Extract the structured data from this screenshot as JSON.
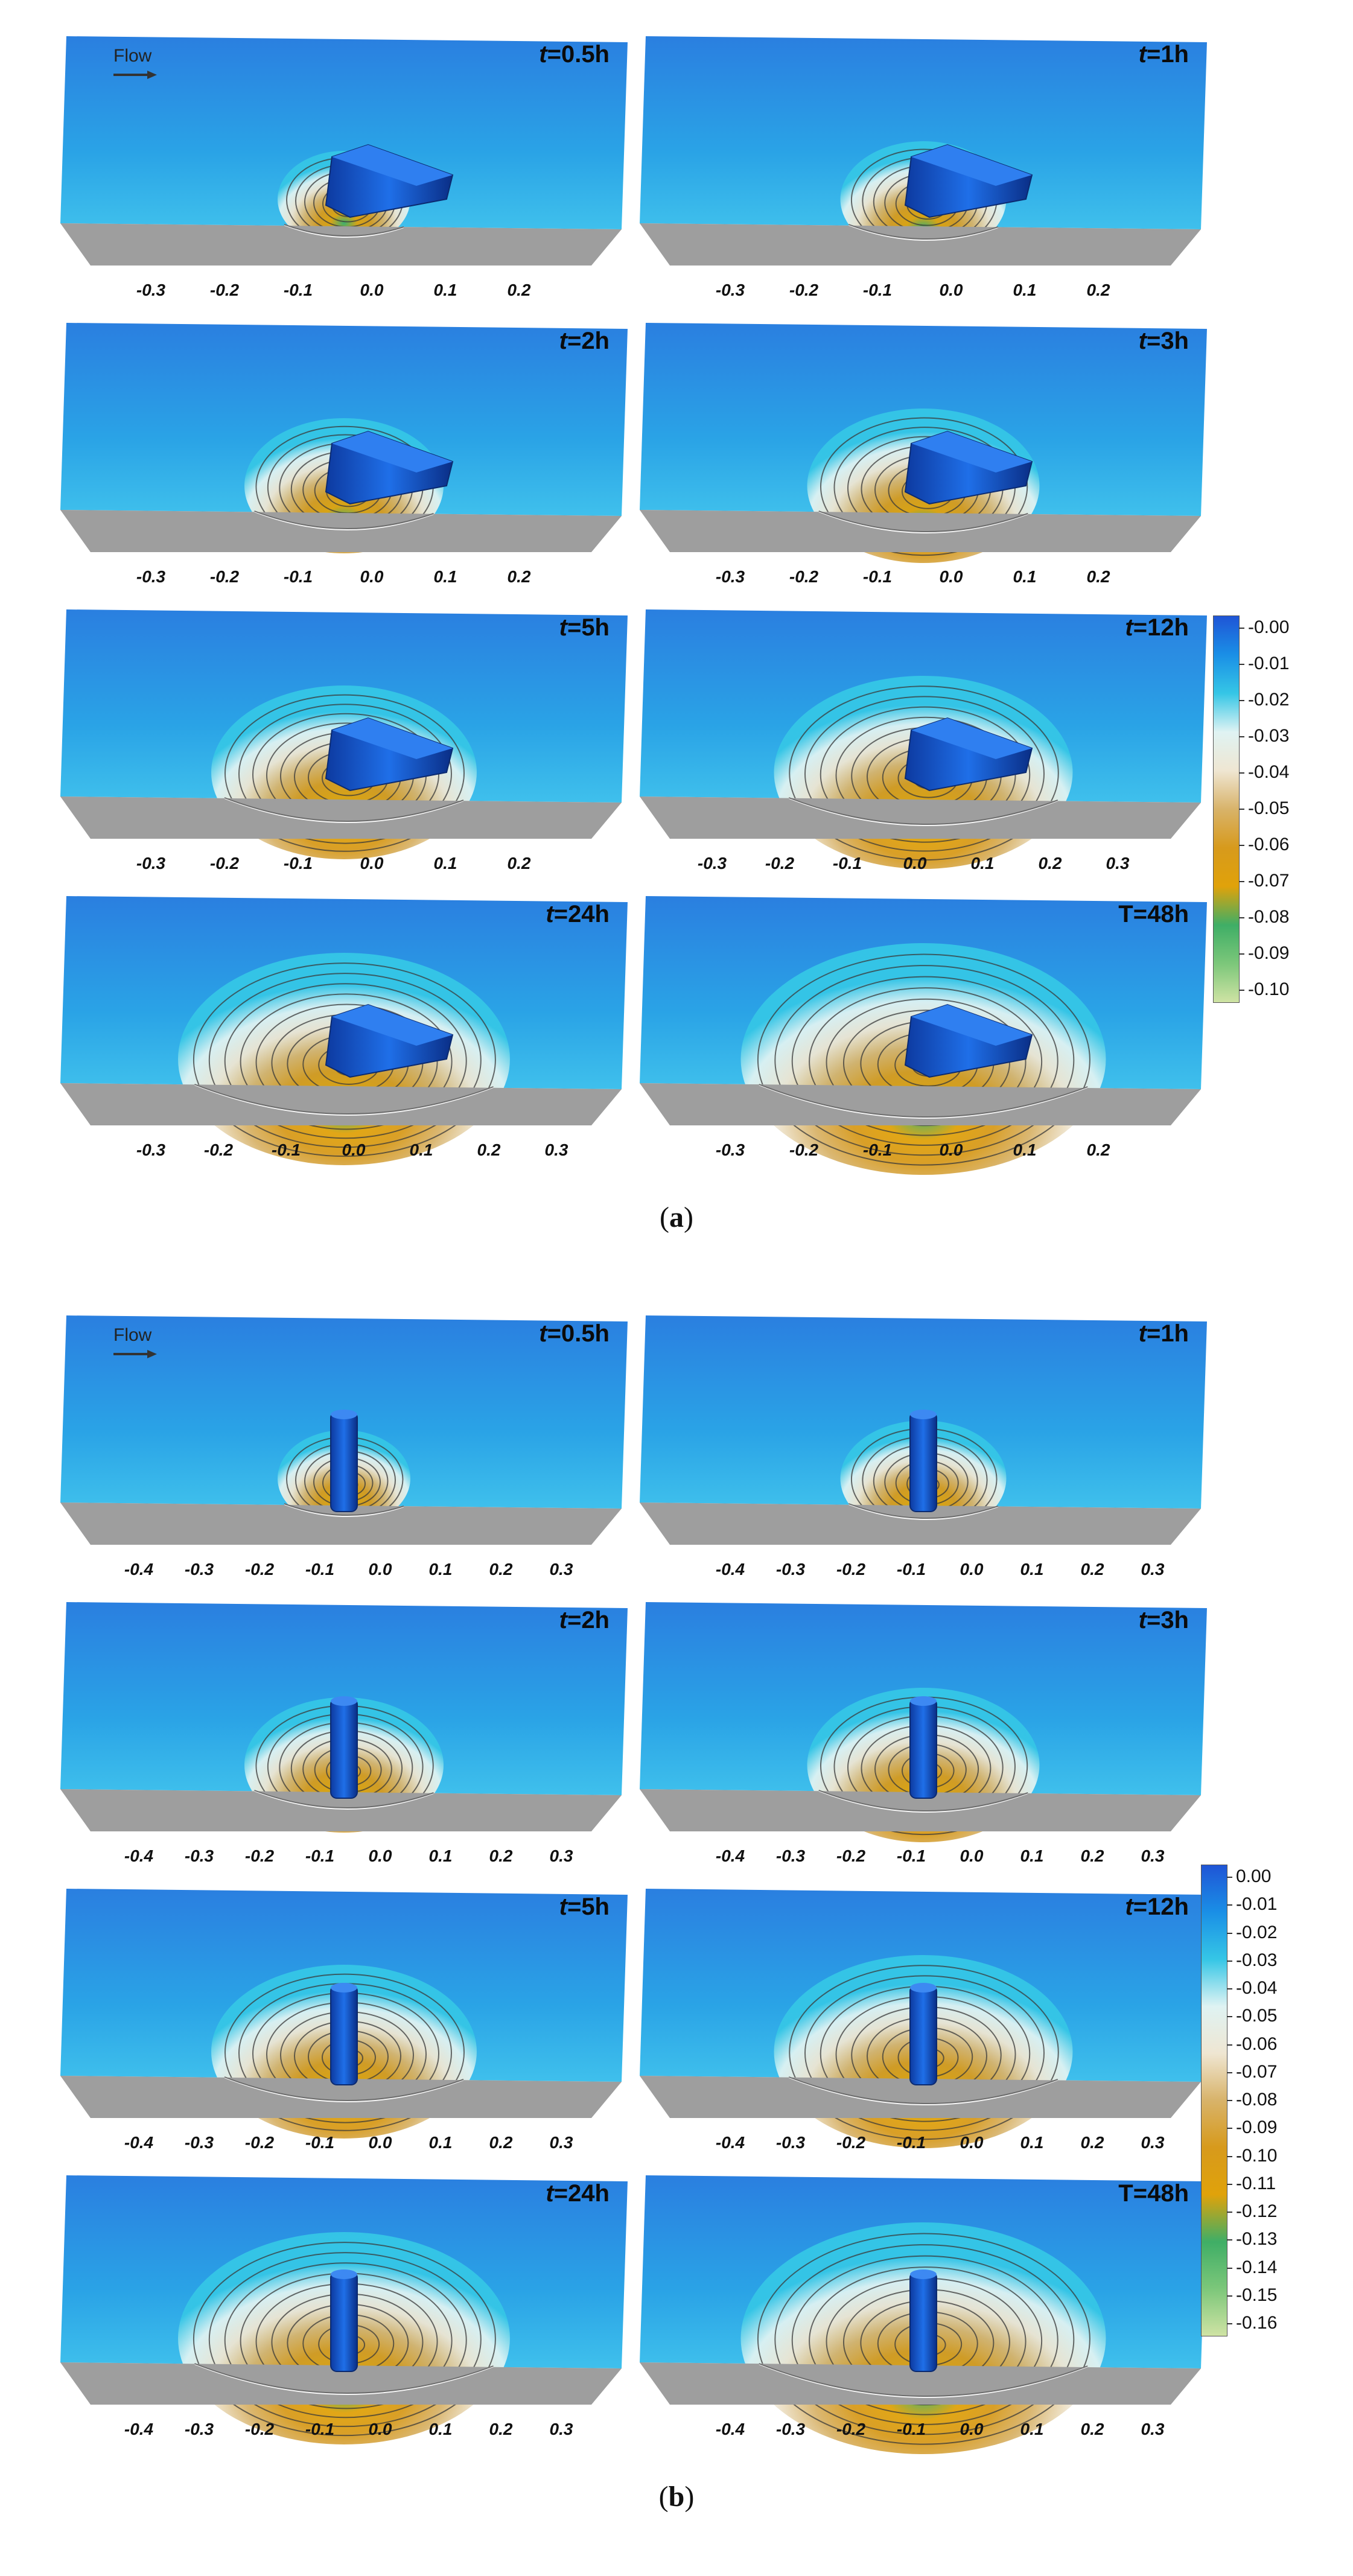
{
  "figure": {
    "flow_label": "Flow",
    "subfigures": [
      {
        "caption_letter": "a",
        "panels": [
          {
            "time_prefix": "t",
            "time_value": "=0.5h",
            "ticks": [
              "-0.3",
              "-0.2",
              "-0.1",
              "0.0",
              "0.1",
              "0.2"
            ],
            "flow": true,
            "pier": "rect"
          },
          {
            "time_prefix": "t",
            "time_value": "=1h",
            "ticks": [
              "-0.3",
              "-0.2",
              "-0.1",
              "0.0",
              "0.1",
              "0.2"
            ],
            "flow": false,
            "pier": "rect"
          },
          {
            "time_prefix": "t",
            "time_value": "=2h",
            "ticks": [
              "-0.3",
              "-0.2",
              "-0.1",
              "0.0",
              "0.1",
              "0.2"
            ],
            "flow": false,
            "pier": "rect"
          },
          {
            "time_prefix": "t",
            "time_value": "=3h",
            "ticks": [
              "-0.3",
              "-0.2",
              "-0.1",
              "0.0",
              "0.1",
              "0.2"
            ],
            "flow": false,
            "pier": "rect"
          },
          {
            "time_prefix": "t",
            "time_value": "=5h",
            "ticks": [
              "-0.3",
              "-0.2",
              "-0.1",
              "0.0",
              "0.1",
              "0.2"
            ],
            "flow": false,
            "pier": "rect"
          },
          {
            "time_prefix": "t",
            "time_value": "=12h",
            "ticks": [
              "-0.3",
              "-0.2",
              "-0.1",
              "0.0",
              "0.1",
              "0.2",
              "0.3"
            ],
            "flow": false,
            "pier": "rect"
          },
          {
            "time_prefix": "t",
            "time_value": "=24h",
            "ticks": [
              "-0.3",
              "-0.2",
              "-0.1",
              "0.0",
              "0.1",
              "0.2",
              "0.3"
            ],
            "flow": false,
            "pier": "rect"
          },
          {
            "time_prefix": "",
            "time_value": "T=48h",
            "ticks": [
              "-0.3",
              "-0.2",
              "-0.1",
              "0.0",
              "0.1",
              "0.2"
            ],
            "flow": false,
            "pier": "rect"
          }
        ],
        "colorbar": {
          "labels": [
            "-0.00",
            "-0.01",
            "-0.02",
            "-0.03",
            "-0.04",
            "-0.05",
            "-0.06",
            "-0.07",
            "-0.08",
            "-0.09",
            "-0.10"
          ],
          "stops": [
            "#1f55d6",
            "#1a8fe6",
            "#35c6e6",
            "#dff3f3",
            "#efe6d2",
            "#d8b36a",
            "#d79a1c",
            "#e0a20a",
            "#3fae66",
            "#7cc77a",
            "#cfe3a4"
          ]
        }
      },
      {
        "caption_letter": "b",
        "panels": [
          {
            "time_prefix": "t",
            "time_value": "=0.5h",
            "ticks": [
              "-0.4",
              "-0.3",
              "-0.2",
              "-0.1",
              "0.0",
              "0.1",
              "0.2",
              "0.3"
            ],
            "flow": true,
            "pier": "round"
          },
          {
            "time_prefix": "t",
            "time_value": "=1h",
            "ticks": [
              "-0.4",
              "-0.3",
              "-0.2",
              "-0.1",
              "0.0",
              "0.1",
              "0.2",
              "0.3"
            ],
            "flow": false,
            "pier": "round"
          },
          {
            "time_prefix": "t",
            "time_value": "=2h",
            "ticks": [
              "-0.4",
              "-0.3",
              "-0.2",
              "-0.1",
              "0.0",
              "0.1",
              "0.2",
              "0.3"
            ],
            "flow": false,
            "pier": "round"
          },
          {
            "time_prefix": "t",
            "time_value": "=3h",
            "ticks": [
              "-0.4",
              "-0.3",
              "-0.2",
              "-0.1",
              "0.0",
              "0.1",
              "0.2",
              "0.3"
            ],
            "flow": false,
            "pier": "round"
          },
          {
            "time_prefix": "t",
            "time_value": "=5h",
            "ticks": [
              "-0.4",
              "-0.3",
              "-0.2",
              "-0.1",
              "0.0",
              "0.1",
              "0.2",
              "0.3"
            ],
            "flow": false,
            "pier": "round"
          },
          {
            "time_prefix": "t",
            "time_value": "=12h",
            "ticks": [
              "-0.4",
              "-0.3",
              "-0.2",
              "-0.1",
              "0.0",
              "0.1",
              "0.2",
              "0.3"
            ],
            "flow": false,
            "pier": "round"
          },
          {
            "time_prefix": "t",
            "time_value": "=24h",
            "ticks": [
              "-0.4",
              "-0.3",
              "-0.2",
              "-0.1",
              "0.0",
              "0.1",
              "0.2",
              "0.3"
            ],
            "flow": false,
            "pier": "round"
          },
          {
            "time_prefix": "",
            "time_value": "T=48h",
            "ticks": [
              "-0.4",
              "-0.3",
              "-0.2",
              "-0.1",
              "0.0",
              "0.1",
              "0.2",
              "0.3"
            ],
            "flow": false,
            "pier": "round"
          }
        ],
        "colorbar": {
          "labels": [
            "0.00",
            "-0.01",
            "-0.02",
            "-0.03",
            "-0.04",
            "-0.05",
            "-0.06",
            "-0.07",
            "-0.08",
            "-0.09",
            "-0.10",
            "-0.11",
            "-0.12",
            "-0.13",
            "-0.14",
            "-0.15",
            "-0.16"
          ],
          "stops": [
            "#1f55d6",
            "#1a8fe6",
            "#35c6e6",
            "#dff3f3",
            "#efe6d2",
            "#d8b36a",
            "#d79a1c",
            "#e0a20a",
            "#3fae66",
            "#7cc77a",
            "#cfe3a4"
          ]
        }
      }
    ]
  }
}
